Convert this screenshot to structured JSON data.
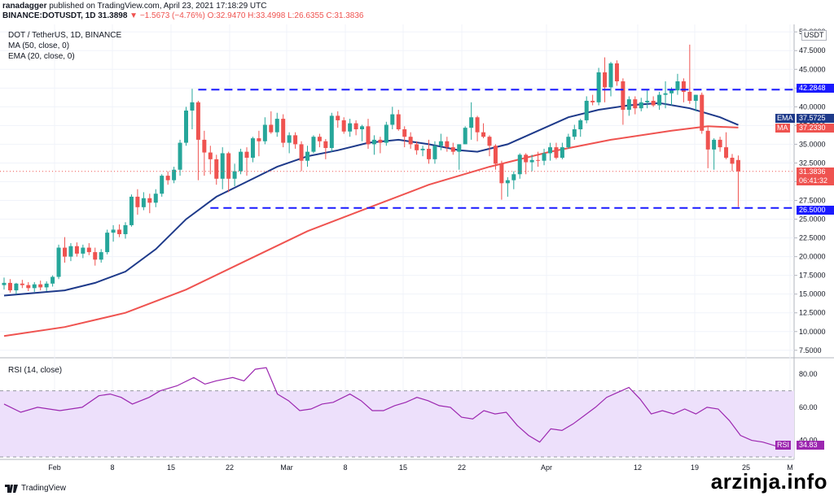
{
  "header": {
    "publisher": "ranadagger",
    "published_on": "published on TradingView.com, April 23, 2021 17:18:29 UTC",
    "symbol_line": "BINANCE:DOTUSDT, 1D 31.3898",
    "change": "▼ −1.5673 (−4.76%)",
    "ohlc": "O:32.9470 H:33.4998 L:26.6355 C:31.3836"
  },
  "legend": {
    "title": "DOT / TetherUS, 1D, BINANCE",
    "ma": "MA (50, close, 0)",
    "ema": "EMA (20, close, 0)",
    "rsi": "RSI (14, close)"
  },
  "tags": {
    "usdt": "USDT",
    "ema_label": "EMA",
    "ema_value": "37.5725",
    "ma_label": "MA",
    "ma_value": "37.2330",
    "last_price": "31.3836",
    "countdown": "06:41:32",
    "resistance": "42.2848",
    "support": "26.5000",
    "rsi_label": "RSI",
    "rsi_value": "34.83"
  },
  "footer": {
    "brand": "TradingView"
  },
  "watermark": "arzinja.info",
  "colors": {
    "up": "#26a69a",
    "down": "#ef5350",
    "ema": "#1e3a8a",
    "ma": "#ef5350",
    "level": "#1a1aff",
    "rsi": "#9c27b0",
    "rsi_band": "#ede0fb"
  },
  "chart_data": {
    "type": "candlestick",
    "title": "DOT / TetherUS, 1D, BINANCE",
    "y_axis_labels": [
      "7.5000",
      "10.0000",
      "12.5000",
      "15.0000",
      "17.5000",
      "20.0000",
      "22.5000",
      "25.0000",
      "27.5000",
      "30.0000",
      "32.5000",
      "35.0000",
      "37.5000",
      "40.0000",
      "42.5000",
      "45.0000",
      "47.5000",
      "50.0000"
    ],
    "ylim": [
      6.5,
      51
    ],
    "x_axis_labels": [
      "Feb",
      "8",
      "15",
      "22",
      "Mar",
      "8",
      "15",
      "22",
      "Apr",
      "12",
      "19",
      "25",
      "M"
    ],
    "start_day": "2021-01-23",
    "ohlc": [
      [
        16.2,
        17.2,
        15.6,
        16.5
      ],
      [
        16.5,
        17.0,
        15.2,
        15.5
      ],
      [
        15.5,
        16.5,
        15.0,
        16.4
      ],
      [
        16.4,
        16.9,
        15.8,
        16.2
      ],
      [
        16.2,
        16.6,
        15.4,
        15.8
      ],
      [
        15.8,
        16.6,
        15.3,
        16.3
      ],
      [
        16.3,
        16.8,
        15.5,
        15.9
      ],
      [
        15.9,
        16.7,
        15.4,
        16.4
      ],
      [
        16.4,
        17.5,
        16.0,
        17.3
      ],
      [
        17.3,
        21.6,
        17.0,
        21.2
      ],
      [
        21.2,
        22.6,
        19.2,
        20.0
      ],
      [
        20.0,
        21.8,
        19.4,
        21.4
      ],
      [
        21.4,
        21.9,
        20.0,
        20.4
      ],
      [
        20.4,
        21.6,
        19.8,
        21.2
      ],
      [
        21.2,
        21.8,
        20.2,
        20.6
      ],
      [
        20.6,
        21.2,
        18.8,
        19.6
      ],
      [
        19.6,
        21.0,
        19.2,
        20.6
      ],
      [
        20.6,
        23.6,
        20.3,
        23.2
      ],
      [
        23.2,
        24.2,
        22.0,
        23.6
      ],
      [
        23.6,
        24.3,
        22.6,
        23.0
      ],
      [
        23.0,
        24.6,
        22.4,
        24.2
      ],
      [
        24.2,
        28.3,
        24.0,
        28.0
      ],
      [
        28.0,
        29.0,
        25.6,
        26.6
      ],
      [
        26.6,
        28.6,
        26.2,
        27.8
      ],
      [
        27.8,
        28.4,
        25.8,
        27.2
      ],
      [
        27.2,
        29.0,
        26.6,
        28.4
      ],
      [
        28.4,
        31.0,
        28.0,
        30.8
      ],
      [
        30.8,
        31.4,
        29.6,
        30.2
      ],
      [
        30.2,
        32.0,
        29.8,
        31.6
      ],
      [
        31.6,
        35.6,
        30.8,
        35.2
      ],
      [
        35.2,
        40.0,
        34.8,
        39.5
      ],
      [
        39.5,
        42.4,
        37.0,
        40.6
      ],
      [
        40.6,
        40.8,
        30.2,
        35.6
      ],
      [
        35.6,
        36.8,
        30.8,
        33.9
      ],
      [
        33.9,
        34.8,
        31.0,
        33.0
      ],
      [
        33.0,
        33.6,
        29.6,
        30.4
      ],
      [
        30.4,
        34.6,
        29.0,
        33.8
      ],
      [
        33.8,
        34.0,
        28.6,
        30.4
      ],
      [
        30.4,
        32.4,
        29.4,
        31.4
      ],
      [
        31.4,
        34.4,
        31.0,
        34.0
      ],
      [
        34.0,
        34.6,
        30.8,
        33.2
      ],
      [
        33.2,
        36.0,
        32.6,
        35.8
      ],
      [
        35.8,
        36.8,
        33.4,
        35.4
      ],
      [
        35.4,
        38.6,
        35.0,
        37.6
      ],
      [
        37.6,
        39.4,
        36.4,
        36.6
      ],
      [
        36.6,
        39.2,
        36.0,
        38.4
      ],
      [
        38.4,
        39.0,
        34.6,
        35.2
      ],
      [
        35.2,
        36.6,
        33.8,
        36.2
      ],
      [
        36.2,
        36.6,
        34.4,
        35.0
      ],
      [
        35.0,
        35.4,
        31.4,
        32.8
      ],
      [
        32.8,
        34.8,
        32.0,
        34.0
      ],
      [
        34.0,
        36.2,
        33.8,
        36.0
      ],
      [
        36.0,
        36.4,
        34.6,
        35.4
      ],
      [
        35.4,
        35.7,
        33.0,
        34.5
      ],
      [
        34.5,
        39.2,
        34.0,
        38.8
      ],
      [
        38.8,
        39.4,
        37.2,
        38.2
      ],
      [
        38.2,
        38.6,
        36.4,
        36.7
      ],
      [
        36.7,
        38.4,
        36.0,
        37.8
      ],
      [
        37.8,
        38.2,
        36.2,
        37.0
      ],
      [
        37.0,
        37.6,
        35.4,
        37.4
      ],
      [
        37.4,
        38.4,
        34.4,
        35.0
      ],
      [
        35.0,
        36.2,
        33.6,
        35.6
      ],
      [
        35.6,
        36.0,
        33.8,
        35.2
      ],
      [
        35.2,
        38.0,
        34.8,
        37.6
      ],
      [
        37.6,
        40.0,
        37.0,
        39.0
      ],
      [
        39.0,
        39.6,
        36.8,
        37.0
      ],
      [
        37.0,
        37.4,
        34.6,
        36.0
      ],
      [
        36.0,
        36.6,
        34.4,
        35.0
      ],
      [
        35.0,
        35.4,
        33.6,
        34.2
      ],
      [
        34.2,
        34.8,
        33.4,
        34.4
      ],
      [
        34.4,
        35.6,
        32.4,
        33.0
      ],
      [
        33.0,
        35.4,
        32.4,
        34.8
      ],
      [
        34.8,
        36.4,
        34.2,
        35.4
      ],
      [
        35.4,
        36.0,
        34.0,
        34.6
      ],
      [
        34.6,
        35.2,
        33.6,
        34.0
      ],
      [
        34.0,
        35.0,
        31.6,
        35.0
      ],
      [
        35.0,
        37.4,
        35.0,
        37.2
      ],
      [
        37.2,
        40.6,
        35.6,
        38.6
      ],
      [
        38.6,
        38.8,
        35.4,
        36.6
      ],
      [
        36.6,
        37.8,
        35.8,
        36.0
      ],
      [
        36.0,
        36.2,
        33.4,
        34.8
      ],
      [
        34.8,
        35.0,
        31.6,
        32.4
      ],
      [
        32.4,
        32.8,
        27.6,
        29.8
      ],
      [
        29.8,
        30.6,
        28.0,
        30.2
      ],
      [
        30.2,
        31.4,
        29.0,
        31.0
      ],
      [
        31.0,
        33.8,
        30.4,
        33.6
      ],
      [
        33.6,
        33.8,
        31.0,
        32.6
      ],
      [
        32.6,
        33.6,
        31.4,
        32.9
      ],
      [
        32.9,
        34.0,
        32.0,
        32.8
      ],
      [
        32.8,
        34.4,
        32.2,
        33.8
      ],
      [
        33.8,
        35.2,
        32.8,
        34.6
      ],
      [
        34.6,
        35.2,
        33.0,
        33.2
      ],
      [
        33.2,
        35.2,
        33.0,
        34.6
      ],
      [
        34.6,
        36.4,
        34.4,
        36.0
      ],
      [
        36.0,
        37.6,
        35.6,
        37.0
      ],
      [
        37.0,
        38.4,
        36.0,
        38.2
      ],
      [
        38.2,
        41.4,
        37.8,
        40.8
      ],
      [
        40.8,
        41.6,
        40.2,
        40.6
      ],
      [
        40.6,
        45.2,
        40.2,
        44.6
      ],
      [
        44.6,
        46.6,
        40.6,
        42.6
      ],
      [
        42.6,
        46.0,
        41.4,
        45.8
      ],
      [
        45.8,
        46.2,
        42.8,
        43.4
      ],
      [
        43.4,
        43.8,
        37.6,
        39.6
      ],
      [
        39.6,
        41.4,
        38.8,
        41.0
      ],
      [
        41.0,
        41.4,
        39.0,
        39.8
      ],
      [
        39.8,
        41.2,
        39.4,
        40.6
      ],
      [
        40.6,
        42.2,
        39.8,
        40.8
      ],
      [
        40.8,
        41.4,
        40.0,
        40.2
      ],
      [
        40.2,
        42.0,
        39.6,
        41.6
      ],
      [
        41.6,
        43.4,
        39.8,
        41.8
      ],
      [
        41.8,
        42.6,
        40.2,
        42.2
      ],
      [
        42.2,
        44.4,
        41.6,
        43.4
      ],
      [
        43.4,
        43.8,
        40.6,
        42.0
      ],
      [
        42.0,
        48.3,
        40.4,
        40.8
      ],
      [
        40.8,
        41.6,
        39.4,
        41.6
      ],
      [
        41.6,
        41.9,
        36.4,
        36.8
      ],
      [
        36.8,
        37.4,
        31.8,
        34.3
      ],
      [
        34.3,
        35.8,
        31.6,
        35.6
      ],
      [
        35.6,
        36.0,
        34.0,
        34.6
      ],
      [
        34.6,
        36.6,
        33.0,
        33.2
      ],
      [
        33.2,
        33.7,
        31.4,
        32.4
      ],
      [
        32.9,
        33.5,
        26.64,
        31.38
      ]
    ],
    "ema20": [
      [
        0,
        14.8
      ],
      [
        10,
        15.5
      ],
      [
        15,
        16.5
      ],
      [
        20,
        18.0
      ],
      [
        25,
        21.0
      ],
      [
        30,
        25.0
      ],
      [
        35,
        28.0
      ],
      [
        40,
        30.0
      ],
      [
        45,
        32.0
      ],
      [
        50,
        33.4
      ],
      [
        55,
        34.2
      ],
      [
        60,
        35.2
      ],
      [
        65,
        35.6
      ],
      [
        70,
        35.0
      ],
      [
        75,
        34.2
      ],
      [
        78,
        34.0
      ],
      [
        83,
        35.0
      ],
      [
        88,
        36.8
      ],
      [
        93,
        38.6
      ],
      [
        98,
        39.6
      ],
      [
        103,
        40.2
      ],
      [
        108,
        40.5
      ],
      [
        113,
        39.8
      ],
      [
        118,
        38.6
      ],
      [
        121,
        37.57
      ]
    ],
    "ma50": [
      [
        0,
        9.4
      ],
      [
        10,
        10.6
      ],
      [
        20,
        12.5
      ],
      [
        30,
        15.6
      ],
      [
        40,
        19.5
      ],
      [
        50,
        23.4
      ],
      [
        60,
        26.5
      ],
      [
        70,
        29.6
      ],
      [
        80,
        32.0
      ],
      [
        90,
        34.0
      ],
      [
        100,
        35.6
      ],
      [
        110,
        36.8
      ],
      [
        116,
        37.4
      ],
      [
        121,
        37.23
      ]
    ],
    "levels": [
      {
        "name": "resistance",
        "value": 42.2848
      },
      {
        "name": "support",
        "value": 26.5
      }
    ],
    "rsi": {
      "ylabels": [
        "40.00",
        "60.00",
        "80.00"
      ],
      "ylim": [
        30,
        86
      ],
      "overbought": 70,
      "oversold": 30,
      "values": [
        [
          0,
          62
        ],
        [
          3,
          57
        ],
        [
          6,
          60
        ],
        [
          10,
          58
        ],
        [
          14,
          60
        ],
        [
          17,
          67
        ],
        [
          19,
          68
        ],
        [
          21,
          66
        ],
        [
          23,
          62
        ],
        [
          26,
          66
        ],
        [
          28,
          70
        ],
        [
          31,
          73
        ],
        [
          34,
          78
        ],
        [
          36,
          74
        ],
        [
          38,
          76
        ],
        [
          41,
          78
        ],
        [
          43,
          76
        ],
        [
          45,
          83
        ],
        [
          47,
          84
        ],
        [
          49,
          68
        ],
        [
          51,
          64
        ],
        [
          53,
          58
        ],
        [
          55,
          59
        ],
        [
          57,
          62
        ],
        [
          59,
          63
        ],
        [
          62,
          68
        ],
        [
          64,
          64
        ],
        [
          66,
          58
        ],
        [
          68,
          58
        ],
        [
          70,
          61
        ],
        [
          72,
          63
        ],
        [
          74,
          66
        ],
        [
          76,
          64
        ],
        [
          78,
          61
        ],
        [
          80,
          60
        ],
        [
          82,
          54
        ],
        [
          84,
          53
        ],
        [
          86,
          58
        ],
        [
          88,
          56
        ],
        [
          90,
          57
        ],
        [
          92,
          49
        ],
        [
          94,
          43
        ],
        [
          96,
          39
        ],
        [
          98,
          47
        ],
        [
          100,
          46
        ],
        [
          102,
          50
        ],
        [
          104,
          55
        ],
        [
          106,
          60
        ],
        [
          108,
          66
        ],
        [
          110,
          69
        ],
        [
          112,
          72
        ],
        [
          114,
          65
        ],
        [
          116,
          56
        ],
        [
          118,
          58
        ],
        [
          120,
          56
        ],
        [
          122,
          59
        ],
        [
          124,
          56
        ],
        [
          126,
          60
        ],
        [
          128,
          59
        ],
        [
          130,
          52
        ],
        [
          132,
          43
        ],
        [
          134,
          40
        ],
        [
          136,
          39
        ],
        [
          138,
          37
        ],
        [
          140,
          34.83
        ]
      ]
    }
  }
}
